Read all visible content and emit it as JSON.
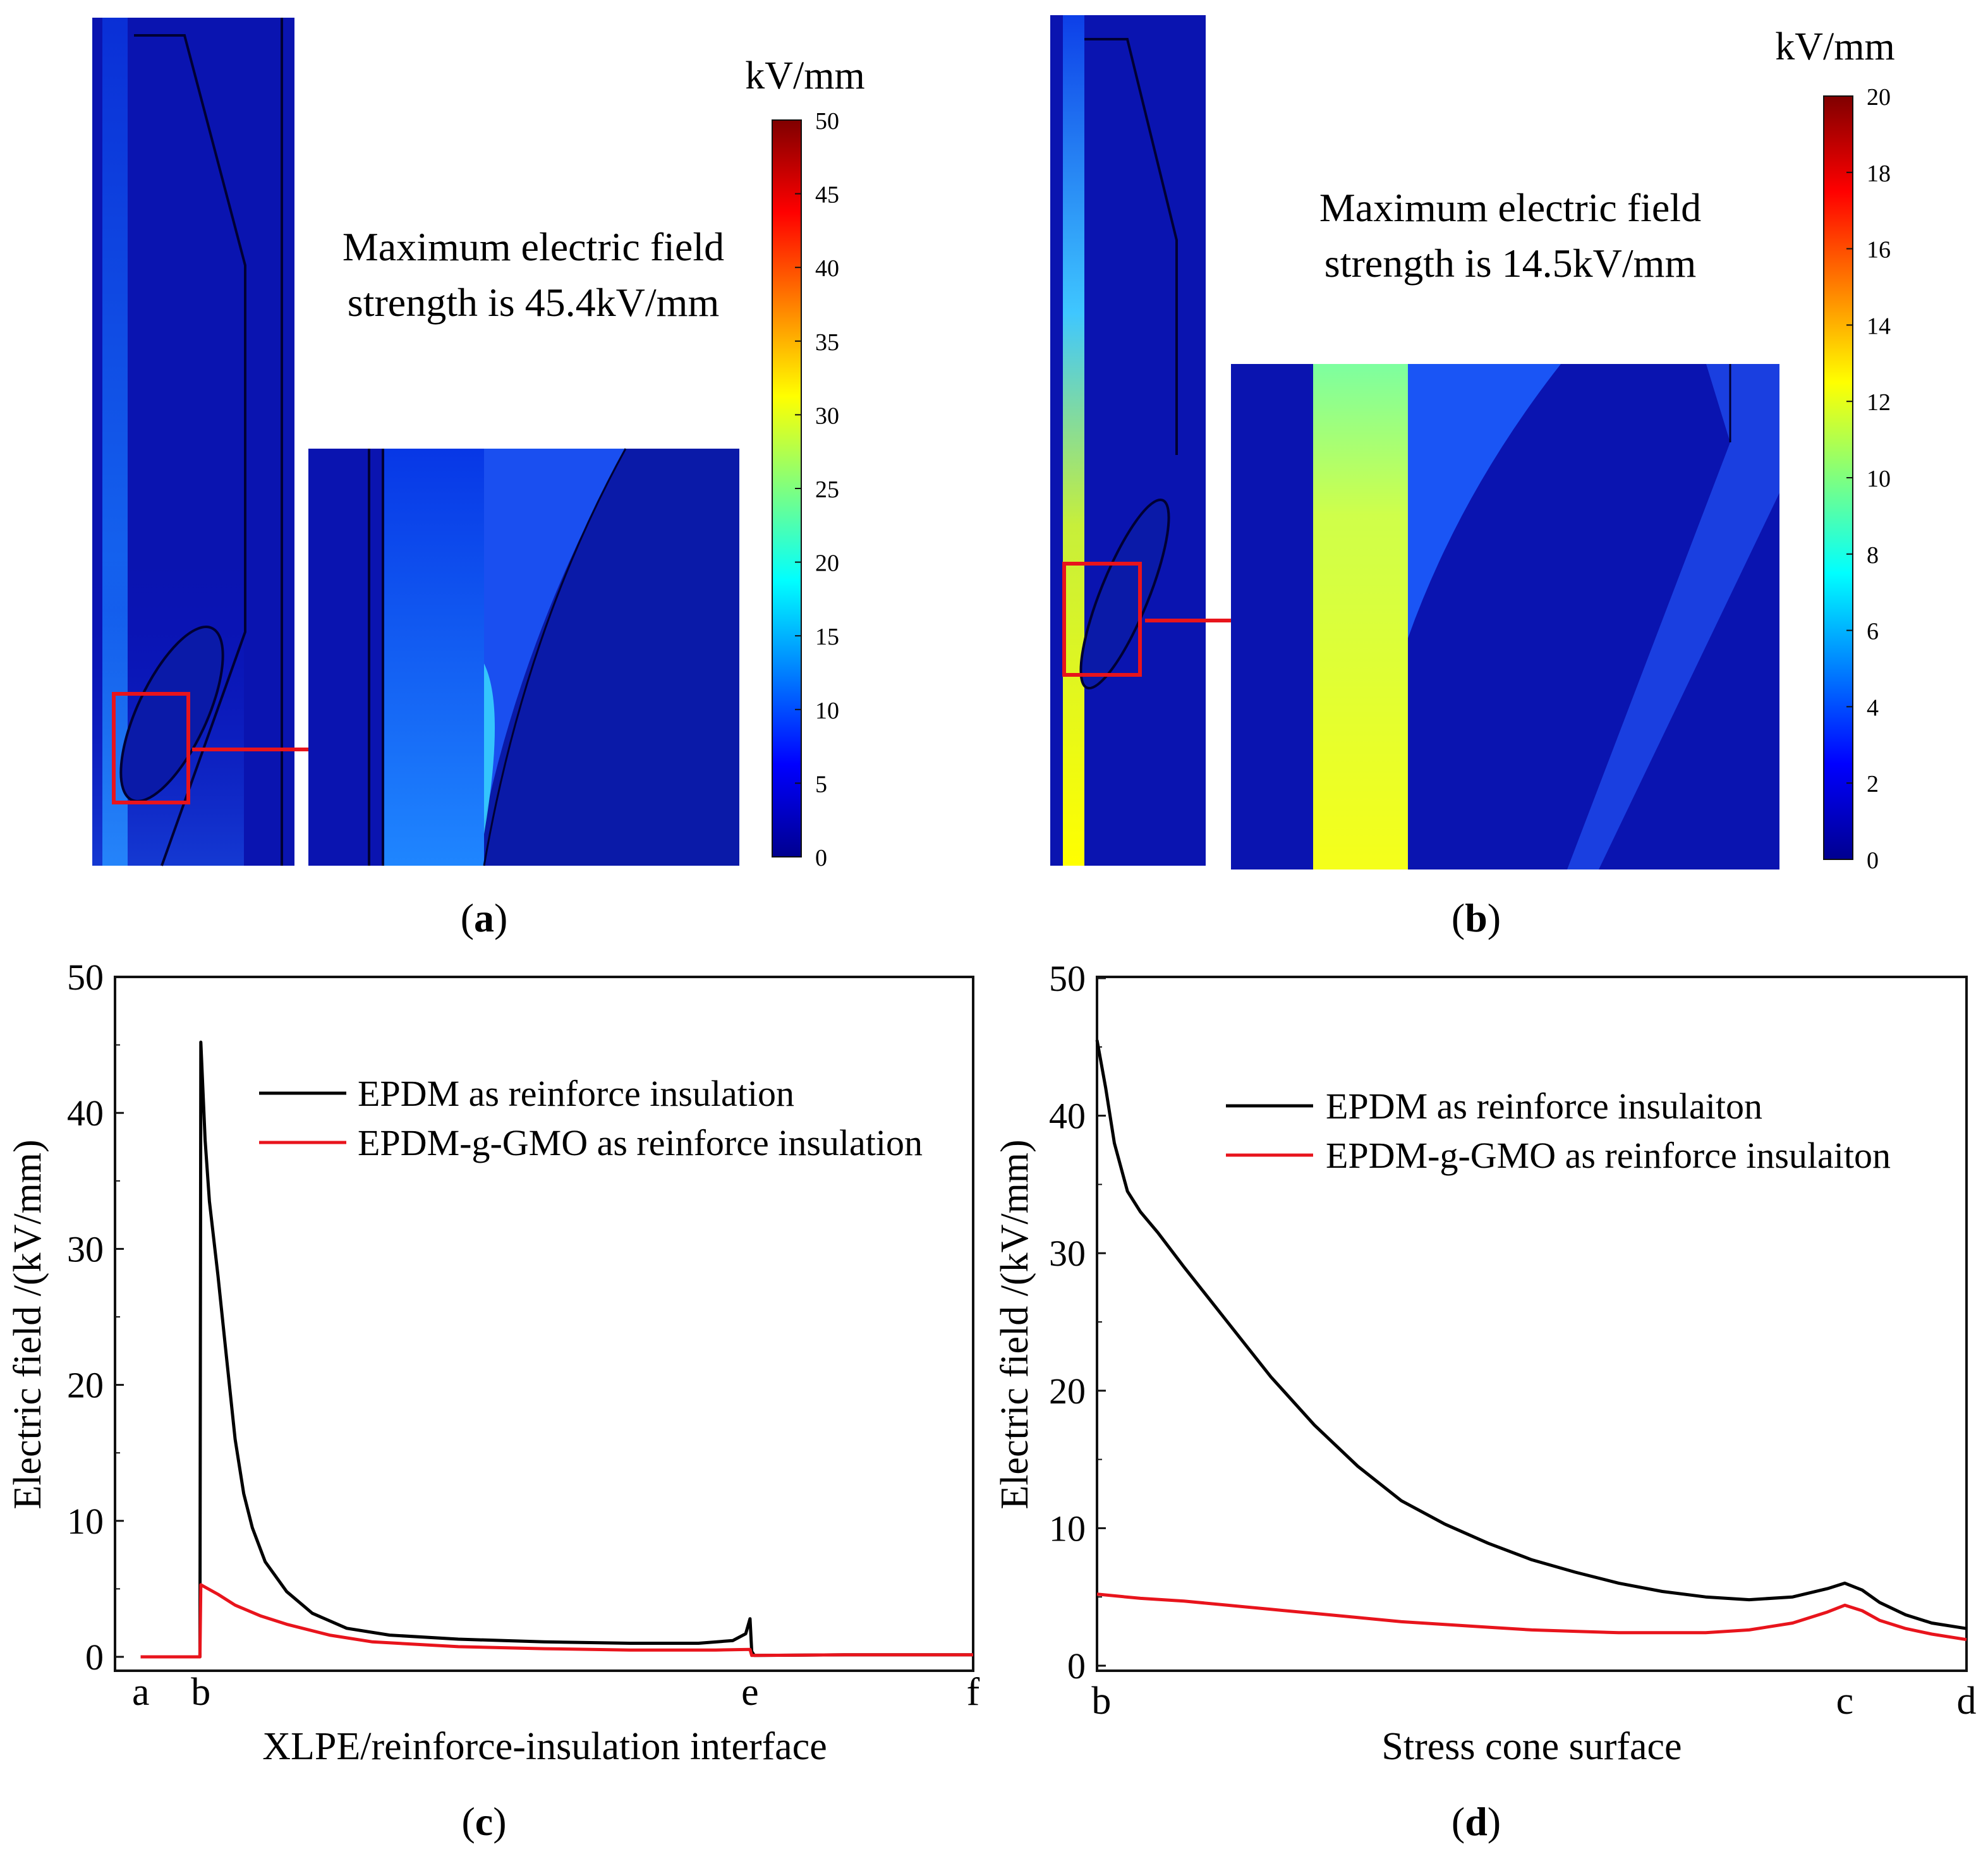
{
  "panel_labels": {
    "a": "a",
    "b": "b",
    "c": "c",
    "d": "d"
  },
  "field_maps": [
    {
      "id": "a",
      "unit": "kV/mm",
      "annotation_line1": "Maximum electric field",
      "annotation_line2": "strength is 45.4kV/mm",
      "colorbar_ticks": [
        "50",
        "45",
        "40",
        "35",
        "30",
        "25",
        "20",
        "15",
        "10",
        "5",
        "0"
      ]
    },
    {
      "id": "b",
      "unit": "kV/mm",
      "annotation_line1": "Maximum electric field",
      "annotation_line2": "strength is 14.5kV/mm",
      "colorbar_ticks": [
        "20",
        "18",
        "16",
        "14",
        "12",
        "10",
        "8",
        "6",
        "4",
        "2",
        "0"
      ]
    }
  ],
  "colors": {
    "epdm": "#000000",
    "epdm_g_gmo": "#e8141c",
    "highlight_box": "#e8141c"
  },
  "chart_data": [
    {
      "type": "line",
      "panel": "c",
      "xlabel": "XLPE/reinforce-insulation interface",
      "ylabel": "Electric field /(kV/mm)",
      "ylim": [
        0,
        50
      ],
      "yticks": [
        0,
        10,
        20,
        30,
        40,
        50
      ],
      "xlim": [
        0,
        10
      ],
      "xticks": [
        {
          "label": "a",
          "x": 0.3
        },
        {
          "label": "b",
          "x": 1.0
        },
        {
          "label": "e",
          "x": 7.4
        },
        {
          "label": "f",
          "x": 10.0
        }
      ],
      "legend_position": "top-right",
      "series": [
        {
          "name": "EPDM as reinforce insulation",
          "color": "#000000",
          "points": [
            [
              0.3,
              0
            ],
            [
              0.99,
              0
            ],
            [
              1.0,
              45.2
            ],
            [
              1.05,
              38
            ],
            [
              1.1,
              33.5
            ],
            [
              1.2,
              28
            ],
            [
              1.3,
              22
            ],
            [
              1.4,
              16
            ],
            [
              1.5,
              12
            ],
            [
              1.6,
              9.5
            ],
            [
              1.75,
              7
            ],
            [
              2.0,
              4.8
            ],
            [
              2.3,
              3.2
            ],
            [
              2.7,
              2.1
            ],
            [
              3.2,
              1.6
            ],
            [
              4.0,
              1.3
            ],
            [
              5.0,
              1.1
            ],
            [
              6.0,
              1.0
            ],
            [
              6.8,
              1.0
            ],
            [
              7.2,
              1.2
            ],
            [
              7.35,
              1.7
            ],
            [
              7.4,
              2.8
            ],
            [
              7.42,
              0.4
            ],
            [
              7.45,
              0.1
            ],
            [
              8.5,
              0.15
            ],
            [
              10.0,
              0.15
            ]
          ]
        },
        {
          "name": "EPDM-g-GMO as reinforce insulation",
          "color": "#e8141c",
          "points": [
            [
              0.3,
              0
            ],
            [
              0.99,
              0
            ],
            [
              1.0,
              5.3
            ],
            [
              1.2,
              4.6
            ],
            [
              1.4,
              3.8
            ],
            [
              1.7,
              3.0
            ],
            [
              2.0,
              2.4
            ],
            [
              2.5,
              1.6
            ],
            [
              3.0,
              1.1
            ],
            [
              4.0,
              0.75
            ],
            [
              5.0,
              0.6
            ],
            [
              6.0,
              0.5
            ],
            [
              7.0,
              0.5
            ],
            [
              7.4,
              0.55
            ],
            [
              7.42,
              0.1
            ],
            [
              8.5,
              0.15
            ],
            [
              10.0,
              0.15
            ]
          ]
        }
      ]
    },
    {
      "type": "line",
      "panel": "d",
      "xlabel": "Stress cone surface",
      "ylabel": "Electric field /(kV/mm)",
      "ylim": [
        0,
        50
      ],
      "yticks": [
        0,
        10,
        20,
        30,
        40,
        50
      ],
      "xlim": [
        0,
        10
      ],
      "xticks": [
        {
          "label": "b",
          "x": 0.05
        },
        {
          "label": "c",
          "x": 8.6
        },
        {
          "label": "d",
          "x": 10.0
        }
      ],
      "legend_position": "top-right",
      "series": [
        {
          "name": "EPDM as reinforce insulaiton",
          "color": "#000000",
          "points": [
            [
              0.0,
              45.5
            ],
            [
              0.1,
              42
            ],
            [
              0.2,
              38
            ],
            [
              0.35,
              34.5
            ],
            [
              0.5,
              33
            ],
            [
              0.7,
              31.5
            ],
            [
              1.0,
              29
            ],
            [
              1.5,
              25
            ],
            [
              2.0,
              21
            ],
            [
              2.5,
              17.5
            ],
            [
              3.0,
              14.5
            ],
            [
              3.5,
              12
            ],
            [
              4.0,
              10.3
            ],
            [
              4.5,
              8.9
            ],
            [
              5.0,
              7.7
            ],
            [
              5.5,
              6.8
            ],
            [
              6.0,
              6.0
            ],
            [
              6.5,
              5.4
            ],
            [
              7.0,
              5.0
            ],
            [
              7.5,
              4.8
            ],
            [
              8.0,
              5.0
            ],
            [
              8.4,
              5.6
            ],
            [
              8.6,
              6.0
            ],
            [
              8.8,
              5.5
            ],
            [
              9.0,
              4.6
            ],
            [
              9.3,
              3.7
            ],
            [
              9.6,
              3.1
            ],
            [
              10.0,
              2.7
            ]
          ]
        },
        {
          "name": "EPDM-g-GMO as reinforce insulaiton",
          "color": "#e8141c",
          "points": [
            [
              0.0,
              5.2
            ],
            [
              0.5,
              4.9
            ],
            [
              1.0,
              4.7
            ],
            [
              1.5,
              4.4
            ],
            [
              2.0,
              4.1
            ],
            [
              2.5,
              3.8
            ],
            [
              3.0,
              3.5
            ],
            [
              3.5,
              3.2
            ],
            [
              4.0,
              3.0
            ],
            [
              4.5,
              2.8
            ],
            [
              5.0,
              2.6
            ],
            [
              5.5,
              2.5
            ],
            [
              6.0,
              2.4
            ],
            [
              6.5,
              2.4
            ],
            [
              7.0,
              2.4
            ],
            [
              7.5,
              2.6
            ],
            [
              8.0,
              3.1
            ],
            [
              8.4,
              3.9
            ],
            [
              8.6,
              4.4
            ],
            [
              8.8,
              4.0
            ],
            [
              9.0,
              3.3
            ],
            [
              9.3,
              2.7
            ],
            [
              9.6,
              2.3
            ],
            [
              10.0,
              1.9
            ]
          ]
        }
      ]
    }
  ]
}
